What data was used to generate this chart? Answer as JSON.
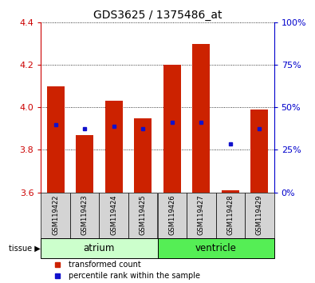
{
  "title": "GDS3625 / 1375486_at",
  "samples": [
    "GSM119422",
    "GSM119423",
    "GSM119424",
    "GSM119425",
    "GSM119426",
    "GSM119427",
    "GSM119428",
    "GSM119429"
  ],
  "red_values": [
    4.1,
    3.87,
    4.03,
    3.95,
    4.2,
    4.3,
    3.61,
    3.99
  ],
  "blue_values": [
    3.92,
    3.9,
    3.91,
    3.9,
    3.93,
    3.93,
    3.83,
    3.9
  ],
  "ylim": [
    3.6,
    4.4
  ],
  "yticks_left": [
    3.6,
    3.8,
    4.0,
    4.2,
    4.4
  ],
  "yticks_right_pct": [
    0,
    25,
    50,
    75,
    100
  ],
  "bar_color": "#cc2200",
  "dot_color": "#1111cc",
  "bar_bottom": 3.6,
  "atrium_color": "#ccffcc",
  "ventricle_color": "#55ee55",
  "tissue_labels": [
    "atrium",
    "ventricle"
  ],
  "left_axis_color": "#cc0000",
  "right_axis_color": "#0000cc",
  "bar_width": 0.6,
  "legend_red": "transformed count",
  "legend_blue": "percentile rank within the sample"
}
